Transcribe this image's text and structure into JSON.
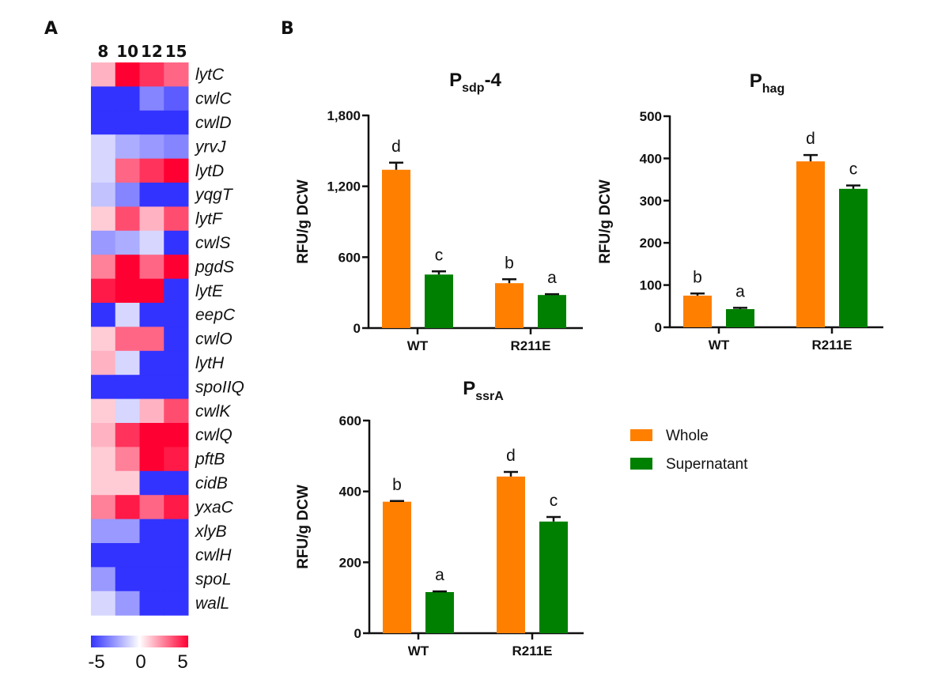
{
  "panels": {
    "a_label": "A",
    "b_label": "B"
  },
  "colors": {
    "whole": "#ff7f00",
    "supernatant": "#008000",
    "heat_low": "#3333ff",
    "heat_mid": "#ffffff",
    "heat_high": "#ff0033"
  },
  "legend": {
    "items": [
      {
        "label": "Whole",
        "color": "#ff7f00"
      },
      {
        "label": "Supernatant",
        "color": "#008000"
      }
    ]
  },
  "chart_data": [
    {
      "type": "heatmap",
      "title": "",
      "columns": [
        "8",
        "10",
        "12",
        "15"
      ],
      "rows": [
        "lytC",
        "cwlC",
        "cwlD",
        "yrvJ",
        "lytD",
        "yqgT",
        "lytF",
        "cwlS",
        "pgdS",
        "lytE",
        "eepC",
        "cwlO",
        "lytH",
        "spoIIQ",
        "cwlK",
        "cwlQ",
        "pftB",
        "cidB",
        "yxaC",
        "xlyB",
        "cwlH",
        "spoL",
        "walL"
      ],
      "values": [
        [
          1.5,
          5,
          4,
          3
        ],
        [
          -5,
          -5,
          -3,
          -4
        ],
        [
          -5,
          -5,
          -5,
          -5
        ],
        [
          -1,
          -2,
          -2.5,
          -3
        ],
        [
          -1,
          3,
          4,
          5
        ],
        [
          -1.5,
          -3,
          -5,
          -5
        ],
        [
          1,
          3.5,
          1.5,
          3.5
        ],
        [
          -2.5,
          -2,
          -1,
          -5
        ],
        [
          2.5,
          5,
          3,
          5
        ],
        [
          4.5,
          5,
          5,
          -5
        ],
        [
          -5,
          -1,
          -5,
          -5
        ],
        [
          1,
          3,
          3,
          -5
        ],
        [
          1.5,
          -1,
          -5,
          -5
        ],
        [
          -5,
          -5,
          -5,
          -5
        ],
        [
          1,
          -1,
          1.5,
          3.5
        ],
        [
          1.5,
          4,
          5,
          5
        ],
        [
          1,
          2.5,
          5,
          4.5
        ],
        [
          1,
          1,
          -5,
          -5
        ],
        [
          2.5,
          4.5,
          3,
          4.5
        ],
        [
          -2.5,
          -2.5,
          -5,
          -5
        ],
        [
          -5,
          -5,
          -5,
          -5
        ],
        [
          -2.5,
          -5,
          -5,
          -5
        ],
        [
          -1,
          -2.5,
          -5,
          -5
        ]
      ],
      "colorbar": {
        "range": [
          -5,
          5
        ],
        "ticks": [
          "-5",
          "0",
          "5"
        ]
      }
    },
    {
      "type": "bar",
      "title_main": "P",
      "title_sub": "sdp",
      "title_suffix": "-4",
      "categories": [
        "WT",
        "R211E"
      ],
      "ylabel": "RFU/g DCW",
      "ylim": [
        0,
        1800
      ],
      "yticks": [
        0,
        600,
        1200,
        1800
      ],
      "ytick_labels": [
        "0",
        "600",
        "1,200",
        "1,800"
      ],
      "series": [
        {
          "name": "Whole",
          "values": [
            1340,
            380
          ],
          "errors": [
            60,
            33
          ],
          "letters": [
            "d",
            "b"
          ]
        },
        {
          "name": "Supernatant",
          "values": [
            453,
            280
          ],
          "errors": [
            27,
            7
          ],
          "letters": [
            "c",
            "a"
          ]
        }
      ]
    },
    {
      "type": "bar",
      "title_main": "P",
      "title_sub": "hag",
      "title_suffix": "",
      "categories": [
        "WT",
        "R211E"
      ],
      "ylabel": "RFU/g DCW",
      "ylim": [
        0,
        500
      ],
      "yticks": [
        0,
        100,
        200,
        300,
        400,
        500
      ],
      "ytick_labels": [
        "0",
        "100",
        "200",
        "300",
        "400",
        "500"
      ],
      "series": [
        {
          "name": "Whole",
          "values": [
            75,
            393
          ],
          "errors": [
            5,
            15
          ],
          "letters": [
            "b",
            "d"
          ]
        },
        {
          "name": "Supernatant",
          "values": [
            43,
            328
          ],
          "errors": [
            3,
            8
          ],
          "letters": [
            "a",
            "c"
          ]
        }
      ]
    },
    {
      "type": "bar",
      "title_main": "P",
      "title_sub": "ssrA",
      "title_suffix": "",
      "categories": [
        "WT",
        "R211E"
      ],
      "ylabel": "RFU/g DCW",
      "ylim": [
        0,
        600
      ],
      "yticks": [
        0,
        200,
        400,
        600
      ],
      "ytick_labels": [
        "0",
        "200",
        "400",
        "600"
      ],
      "series": [
        {
          "name": "Whole",
          "values": [
            371,
            442
          ],
          "errors": [
            2,
            13
          ],
          "letters": [
            "b",
            "d"
          ]
        },
        {
          "name": "Supernatant",
          "values": [
            116,
            315
          ],
          "errors": [
            2,
            13
          ],
          "letters": [
            "a",
            "c"
          ]
        }
      ]
    }
  ]
}
